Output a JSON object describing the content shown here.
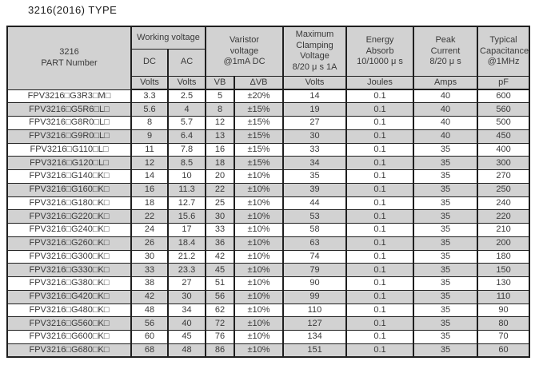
{
  "title": "3216(2016) TYPE",
  "table": {
    "header": {
      "part_number": "3216\nPART Number",
      "working_voltage": "Working voltage",
      "dc": "DC",
      "ac": "AC",
      "varistor_voltage": "Varistor\nvoltage\n@1mA DC",
      "max_clamping_voltage": "Maximum\nClamping\nVoltage\n8/20 μ s 1A",
      "energy_absorb": "Energy\nAbsorb\n10/1000 μ s",
      "peak_current": "Peak\nCurrent\n8/20 μ s",
      "typical_capacitance": "Typical\nCapacitance\n@1MHz",
      "units": {
        "dc": "Volts",
        "ac": "Volts",
        "vb": "VB",
        "delta_vb": "ΔVB",
        "clamping": "Volts",
        "energy": "Joules",
        "peak": "Amps",
        "capacitance": "pF"
      }
    },
    "column_keys": [
      "part-number-cell",
      "dc-volts-cell",
      "ac-volts-cell",
      "vb-cell",
      "delta-vb-cell",
      "clamping-volts-cell",
      "energy-joules-cell",
      "peak-amps-cell",
      "capacitance-pf-cell"
    ],
    "rows": [
      [
        "FPV3216□G3R3□M□",
        "3.3",
        "2.5",
        "5",
        "±20%",
        "14",
        "0.1",
        "40",
        "600"
      ],
      [
        "FPV3216□G5R6□L□",
        "5.6",
        "4",
        "8",
        "±15%",
        "19",
        "0.1",
        "40",
        "560"
      ],
      [
        "FPV3216□G8R0□L□",
        "8",
        "5.7",
        "12",
        "±15%",
        "27",
        "0.1",
        "40",
        "500"
      ],
      [
        "FPV3216□G9R0□L□",
        "9",
        "6.4",
        "13",
        "±15%",
        "30",
        "0.1",
        "40",
        "450"
      ],
      [
        "FPV3216□G110□L□",
        "11",
        "7.8",
        "16",
        "±15%",
        "33",
        "0.1",
        "35",
        "400"
      ],
      [
        "FPV3216□G120□L□",
        "12",
        "8.5",
        "18",
        "±15%",
        "34",
        "0.1",
        "35",
        "300"
      ],
      [
        "FPV3216□G140□K□",
        "14",
        "10",
        "20",
        "±10%",
        "35",
        "0.1",
        "35",
        "270"
      ],
      [
        "FPV3216□G160□K□",
        "16",
        "11.3",
        "22",
        "±10%",
        "39",
        "0.1",
        "35",
        "250"
      ],
      [
        "FPV3216□G180□K□",
        "18",
        "12.7",
        "25",
        "±10%",
        "44",
        "0.1",
        "35",
        "240"
      ],
      [
        "FPV3216□G220□K□",
        "22",
        "15.6",
        "30",
        "±10%",
        "53",
        "0.1",
        "35",
        "220"
      ],
      [
        "FPV3216□G240□K□",
        "24",
        "17",
        "33",
        "±10%",
        "58",
        "0.1",
        "35",
        "210"
      ],
      [
        "FPV3216□G260□K□",
        "26",
        "18.4",
        "36",
        "±10%",
        "63",
        "0.1",
        "35",
        "200"
      ],
      [
        "FPV3216□G300□K□",
        "30",
        "21.2",
        "42",
        "±10%",
        "74",
        "0.1",
        "35",
        "180"
      ],
      [
        "FPV3216□G330□K□",
        "33",
        "23.3",
        "45",
        "±10%",
        "79",
        "0.1",
        "35",
        "150"
      ],
      [
        "FPV3216□G380□K□",
        "38",
        "27",
        "51",
        "±10%",
        "90",
        "0.1",
        "35",
        "130"
      ],
      [
        "FPV3216□G420□K□",
        "42",
        "30",
        "56",
        "±10%",
        "99",
        "0.1",
        "35",
        "110"
      ],
      [
        "FPV3216□G480□K□",
        "48",
        "34",
        "62",
        "±10%",
        "110",
        "0.1",
        "35",
        "90"
      ],
      [
        "FPV3216□G560□K□",
        "56",
        "40",
        "72",
        "±10%",
        "127",
        "0.1",
        "35",
        "80"
      ],
      [
        "FPV3216□G600□K□",
        "60",
        "45",
        "76",
        "±10%",
        "134",
        "0.1",
        "35",
        "70"
      ],
      [
        "FPV3216□G680□K□",
        "68",
        "48",
        "86",
        "±10%",
        "151",
        "0.1",
        "35",
        "60"
      ]
    ]
  },
  "colors": {
    "header_bg": "#d2d2d2",
    "alt_row_bg": "#d2d2d2",
    "border": "#1f1f1f",
    "text": "#3a3a3a"
  }
}
